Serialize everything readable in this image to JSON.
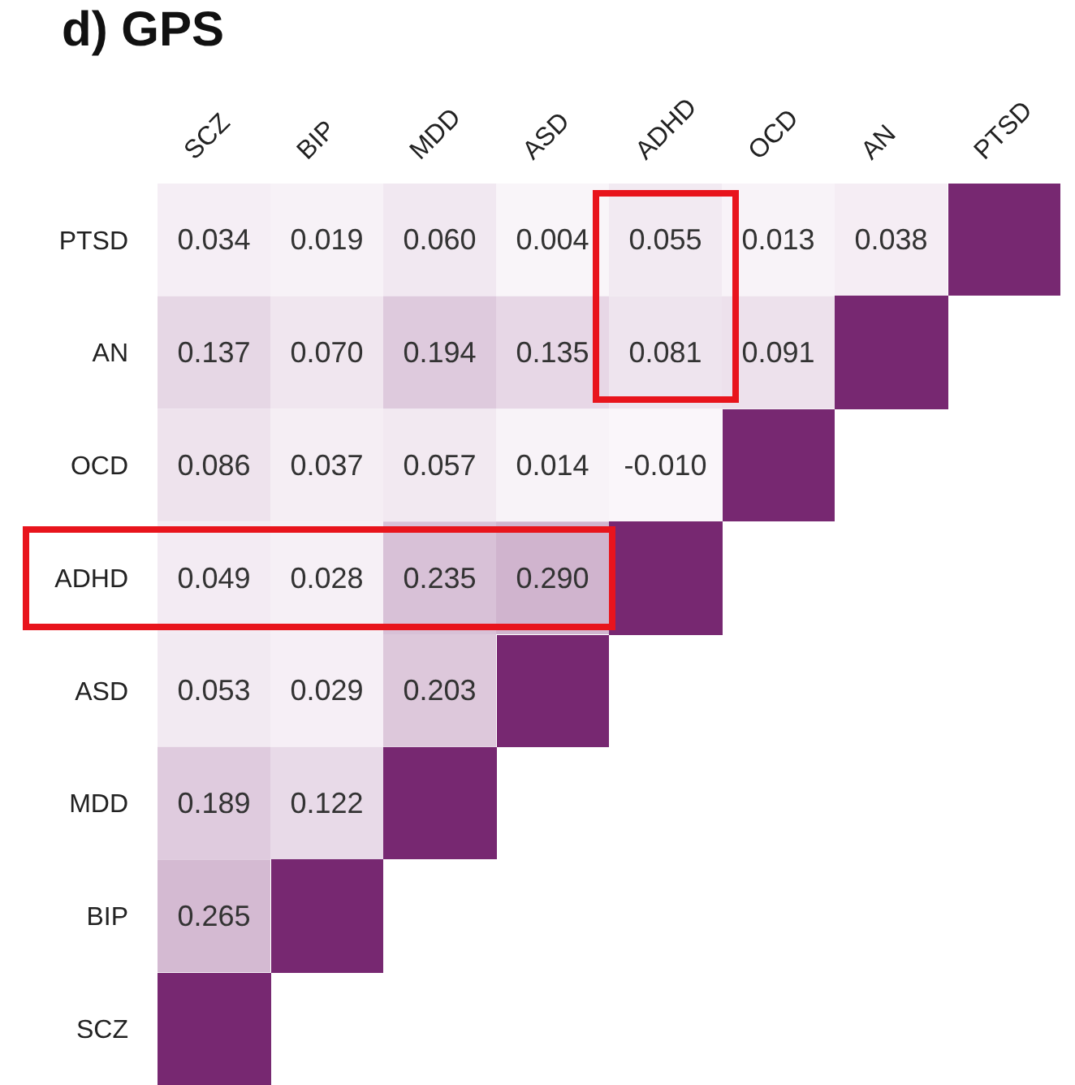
{
  "chart_data": {
    "type": "heatmap",
    "title": "d) GPS",
    "categories": [
      "SCZ",
      "BIP",
      "MDD",
      "ASD",
      "ADHD",
      "OCD",
      "AN",
      "PTSD"
    ],
    "y_categories": [
      "PTSD",
      "AN",
      "OCD",
      "ADHD",
      "ASD",
      "MDD",
      "BIP",
      "SCZ"
    ],
    "cells": [
      [
        0.034,
        0.019,
        0.06,
        0.004,
        0.055,
        0.013,
        0.038,
        null
      ],
      [
        0.137,
        0.07,
        0.194,
        0.135,
        0.081,
        0.091,
        null,
        null
      ],
      [
        0.086,
        0.037,
        0.057,
        0.014,
        -0.01,
        null,
        null,
        null
      ],
      [
        0.049,
        0.028,
        0.235,
        0.29,
        null,
        null,
        null,
        null
      ],
      [
        0.053,
        0.029,
        0.203,
        null,
        null,
        null,
        null,
        null
      ],
      [
        0.189,
        0.122,
        null,
        null,
        null,
        null,
        null,
        null
      ],
      [
        0.265,
        null,
        null,
        null,
        null,
        null,
        null,
        null
      ],
      [
        null,
        null,
        null,
        null,
        null,
        null,
        null,
        null
      ]
    ],
    "cell_labels": [
      [
        "0.034",
        "0.019",
        "0.060",
        "0.004",
        "0.055",
        "0.013",
        "0.038",
        null
      ],
      [
        "0.137",
        "0.070",
        "0.194",
        "0.135",
        "0.081",
        "0.091",
        null,
        null
      ],
      [
        "0.086",
        "0.037",
        "0.057",
        "0.014",
        "-0.010",
        null,
        null,
        null
      ],
      [
        "0.049",
        "0.028",
        "0.235",
        "0.290",
        null,
        null,
        null,
        null
      ],
      [
        "0.053",
        "0.029",
        "0.203",
        null,
        null,
        null,
        null,
        null
      ],
      [
        "0.189",
        "0.122",
        null,
        null,
        null,
        null,
        null,
        null
      ],
      [
        "0.265",
        null,
        null,
        null,
        null,
        null,
        null,
        null
      ],
      [
        null,
        null,
        null,
        null,
        null,
        null,
        null,
        null
      ]
    ]
  }
}
